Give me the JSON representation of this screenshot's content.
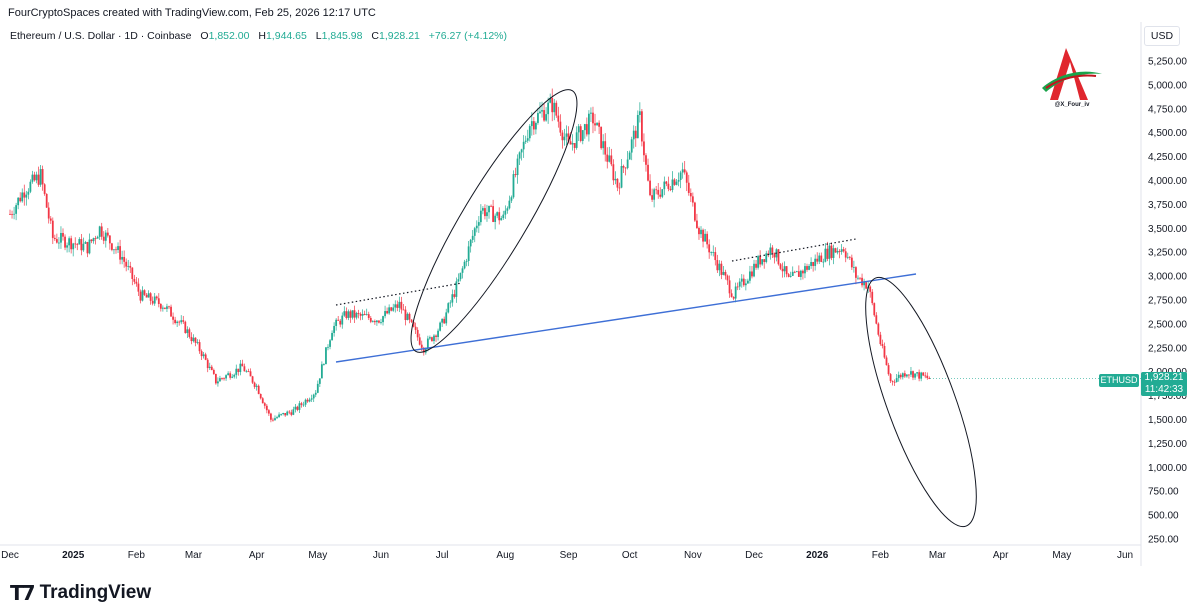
{
  "header": {
    "attribution": "FourCryptoSpaces created with TradingView.com, Feb 25, 2026 12:17 UTC",
    "symbol": "Ethereum / U.S. Dollar · 1D · Coinbase",
    "open_label": "O",
    "open": "1,852.00",
    "high_label": "H",
    "high": "1,944.65",
    "low_label": "L",
    "low": "1,845.98",
    "close_label": "C",
    "close": "1,928.21",
    "change": "+76.27 (+4.12%)"
  },
  "currency": "USD",
  "last_price": {
    "symbol": "ETHUSD",
    "price": "1,928.21",
    "countdown": "11:42:33"
  },
  "watermark": {
    "handle": "@X_Four_iv",
    "icon": "red-letter-a-logo"
  },
  "brand": {
    "name": "TradingView",
    "icon": "tradingview-logo-icon"
  },
  "colors": {
    "up": "#22ab94",
    "down": "#f23645",
    "trendline": "#3e6fd6",
    "accent": "#22ab94"
  },
  "chart_data": {
    "type": "candlestick",
    "symbol": "ETHUSD",
    "interval": "1D",
    "x_tick_labels": [
      "Dec",
      "2025",
      "Feb",
      "Mar",
      "Apr",
      "May",
      "Jun",
      "Jul",
      "Aug",
      "Sep",
      "Oct",
      "Nov",
      "Dec",
      "2026",
      "Feb",
      "Mar",
      "Apr",
      "May",
      "Jun"
    ],
    "y_tick_labels": [
      "5,250.00",
      "5,000.00",
      "4,750.00",
      "4,500.00",
      "4,250.00",
      "4,000.00",
      "3,750.00",
      "3,500.00",
      "3,250.00",
      "3,000.00",
      "2,750.00",
      "2,500.00",
      "2,250.00",
      "2,000.00",
      "1,750.00",
      "1,500.00",
      "1,250.00",
      "1,000.00",
      "750.00",
      "500.00",
      "250.00"
    ],
    "y_ticks": [
      5250,
      5000,
      4750,
      4500,
      4250,
      4000,
      3750,
      3500,
      3250,
      3000,
      2750,
      2500,
      2250,
      2000,
      1750,
      1500,
      1250,
      1000,
      750,
      500,
      250
    ],
    "ylim": [
      250,
      5250
    ],
    "x_start": "2024-12-01",
    "x_end": "2026-06-01",
    "close_path": [
      {
        "date": "2024-12-01",
        "price": 3650
      },
      {
        "date": "2024-12-08",
        "price": 3900
      },
      {
        "date": "2024-12-16",
        "price": 4050
      },
      {
        "date": "2024-12-22",
        "price": 3400
      },
      {
        "date": "2025-01-01",
        "price": 3350
      },
      {
        "date": "2025-01-08",
        "price": 3300
      },
      {
        "date": "2025-01-14",
        "price": 3500
      },
      {
        "date": "2025-01-25",
        "price": 3200
      },
      {
        "date": "2025-02-03",
        "price": 2800
      },
      {
        "date": "2025-02-14",
        "price": 2700
      },
      {
        "date": "2025-02-25",
        "price": 2450
      },
      {
        "date": "2025-03-05",
        "price": 2200
      },
      {
        "date": "2025-03-12",
        "price": 1900
      },
      {
        "date": "2025-03-25",
        "price": 2050
      },
      {
        "date": "2025-04-01",
        "price": 1850
      },
      {
        "date": "2025-04-08",
        "price": 1500
      },
      {
        "date": "2025-04-20",
        "price": 1600
      },
      {
        "date": "2025-04-30",
        "price": 1800
      },
      {
        "date": "2025-05-08",
        "price": 2450
      },
      {
        "date": "2025-05-15",
        "price": 2600
      },
      {
        "date": "2025-05-31",
        "price": 2550
      },
      {
        "date": "2025-06-10",
        "price": 2700
      },
      {
        "date": "2025-06-22",
        "price": 2250
      },
      {
        "date": "2025-07-01",
        "price": 2500
      },
      {
        "date": "2025-07-10",
        "price": 3000
      },
      {
        "date": "2025-07-20",
        "price": 3700
      },
      {
        "date": "2025-07-31",
        "price": 3600
      },
      {
        "date": "2025-08-13",
        "price": 4600
      },
      {
        "date": "2025-08-24",
        "price": 4800
      },
      {
        "date": "2025-09-01",
        "price": 4350
      },
      {
        "date": "2025-09-13",
        "price": 4650
      },
      {
        "date": "2025-09-25",
        "price": 3950
      },
      {
        "date": "2025-10-06",
        "price": 4650
      },
      {
        "date": "2025-10-11",
        "price": 3800
      },
      {
        "date": "2025-10-27",
        "price": 4100
      },
      {
        "date": "2025-11-04",
        "price": 3500
      },
      {
        "date": "2025-11-21",
        "price": 2800
      },
      {
        "date": "2025-12-03",
        "price": 3150
      },
      {
        "date": "2025-12-10",
        "price": 3300
      },
      {
        "date": "2025-12-18",
        "price": 2950
      },
      {
        "date": "2026-01-06",
        "price": 3250
      },
      {
        "date": "2026-01-14",
        "price": 3300
      },
      {
        "date": "2026-01-20",
        "price": 3000
      },
      {
        "date": "2026-01-26",
        "price": 2900
      },
      {
        "date": "2026-02-01",
        "price": 2300
      },
      {
        "date": "2026-02-06",
        "price": 1900
      },
      {
        "date": "2026-02-14",
        "price": 2000
      },
      {
        "date": "2026-02-25",
        "price": 1928
      }
    ]
  }
}
